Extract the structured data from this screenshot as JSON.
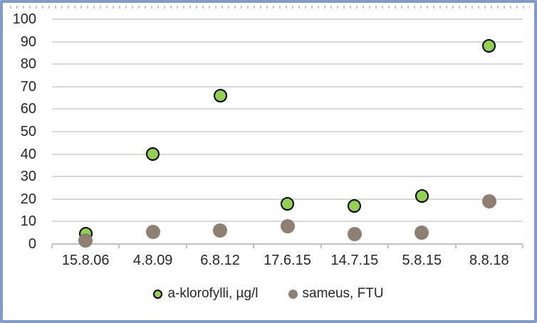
{
  "chart_data": {
    "type": "scatter",
    "title": "",
    "xlabel": "",
    "ylabel": "",
    "categories": [
      "15.8.06",
      "4.8.09",
      "6.8.12",
      "17.6.15",
      "14.7.15",
      "5.8.15",
      "8.8.18"
    ],
    "series": [
      {
        "name": "a-klorofylli, µg/l",
        "values": [
          4.5,
          40,
          66,
          18,
          17,
          21.5,
          88
        ],
        "fill": "#92d050",
        "stroke": "#000000",
        "marker_diameter": 15,
        "marker_stroke_width": 2
      },
      {
        "name": "sameus, FTU",
        "values": [
          1.5,
          5.5,
          6,
          8,
          4.5,
          5,
          19
        ],
        "fill": "#8d8070",
        "stroke": "none",
        "marker_diameter": 20,
        "marker_stroke_width": 0
      }
    ],
    "ylim": [
      0,
      100
    ],
    "ytick_step": 10,
    "yticks": [
      0,
      10,
      20,
      30,
      40,
      50,
      60,
      70,
      80,
      90,
      100
    ],
    "grid": true,
    "legend_position": "bottom"
  },
  "colors": {
    "frame_border": "#7e9cc5",
    "gridline": "#d9d9d9",
    "axis_line": "#c0c0c0",
    "label_text": "#262626",
    "background": "#ffffff"
  }
}
